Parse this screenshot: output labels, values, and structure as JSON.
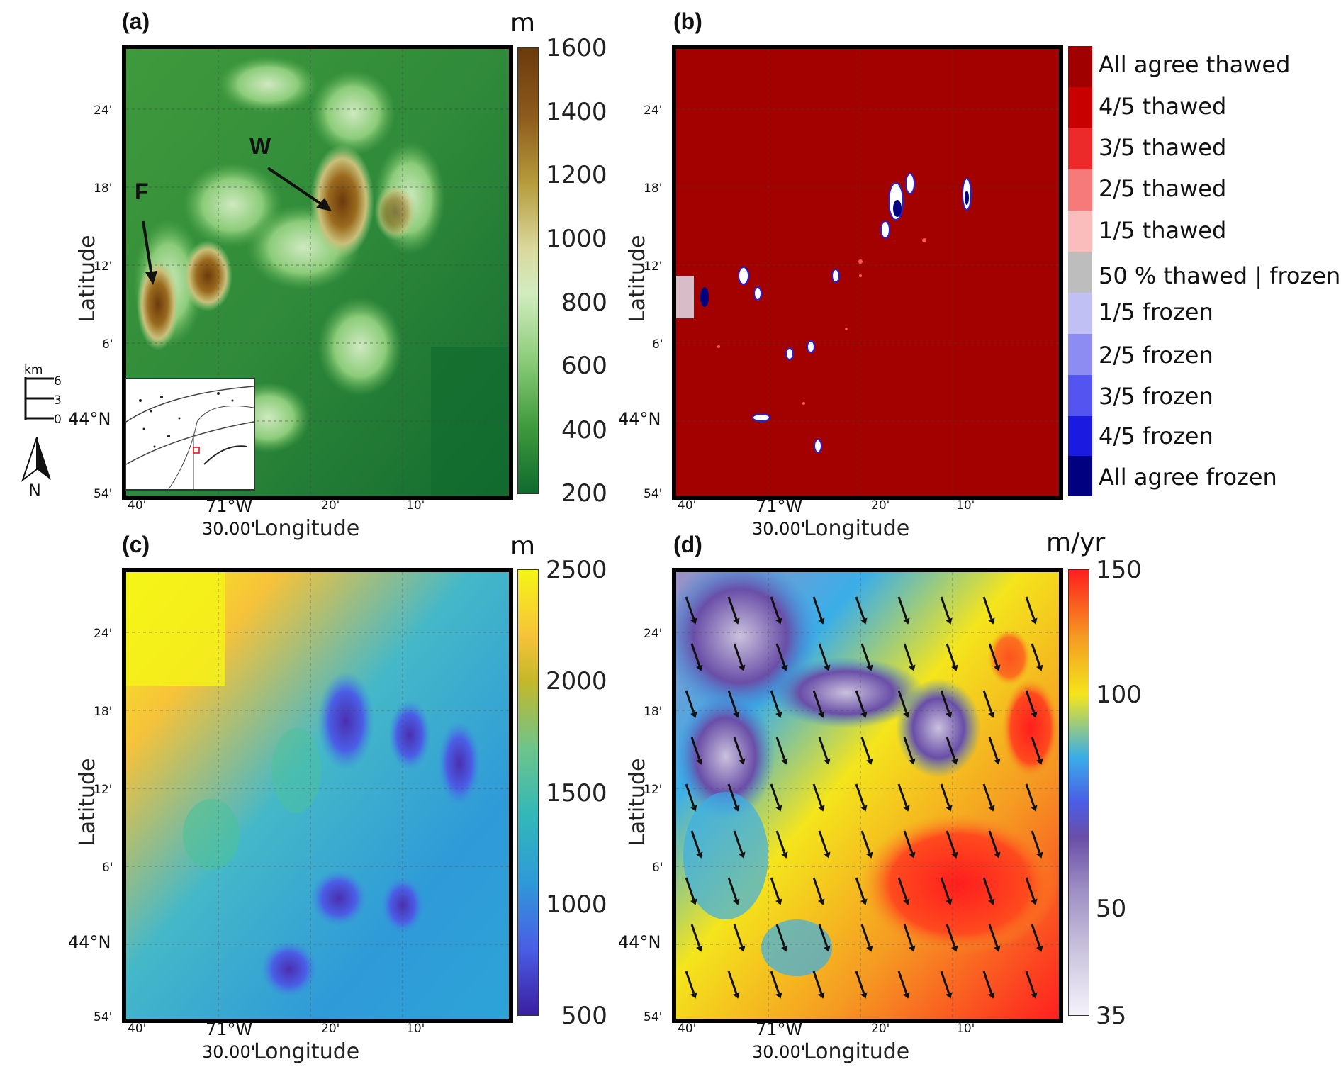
{
  "panels": {
    "a": {
      "letter": "(a)",
      "unit": "m",
      "cbar_ticks": [
        "1600",
        "1400",
        "1200",
        "1000",
        "800",
        "600",
        "400",
        "200"
      ],
      "annotations": {
        "w": "W",
        "f": "F"
      }
    },
    "b": {
      "letter": "(b)",
      "legend": [
        "All agree thawed",
        "4/5 thawed",
        "3/5 thawed",
        "2/5 thawed",
        "1/5 thawed",
        "50 % thawed | frozen",
        "1/5 frozen",
        "2/5 frozen",
        "3/5 frozen",
        "4/5 frozen",
        "All agree frozen"
      ],
      "legend_colors": [
        "#a10000",
        "#c80000",
        "#ec2a2a",
        "#f77a7a",
        "#fbbcbc",
        "#bdbdbd",
        "#c0c0f5",
        "#8c8cf3",
        "#5454f0",
        "#1a1ae0",
        "#000080"
      ]
    },
    "c": {
      "letter": "(c)",
      "unit": "m",
      "cbar_ticks": [
        "2500",
        "2000",
        "1500",
        "1000",
        "500"
      ]
    },
    "d": {
      "letter": "(d)",
      "unit": "m/yr",
      "cbar_ticks": [
        "150",
        "100",
        "50",
        "35"
      ]
    }
  },
  "axes": {
    "lat_ticks": [
      "24'",
      "18'",
      "12'",
      "6'",
      "44°N",
      "54'"
    ],
    "lon_ticks": [
      "40'",
      "71°W",
      "20'",
      "10'"
    ],
    "lon_extra": "30.00'",
    "xlabel": "Longitude",
    "ylabel": "Latitude"
  },
  "scale_bar": {
    "unit": "km",
    "ticks": [
      "6",
      "3",
      "0"
    ],
    "north": "N"
  },
  "colors": {
    "frame": "#000000",
    "terrain_low": "#0f6b2e",
    "terrain_high": "#6b3a0c",
    "thawed": "#a10000",
    "frozen": "#1a1ae0",
    "snow_high": "#f5f516",
    "snow_low": "#4b2fb0",
    "vel_high": "#ff1e1e",
    "vel_low": "#f5f2fa"
  }
}
